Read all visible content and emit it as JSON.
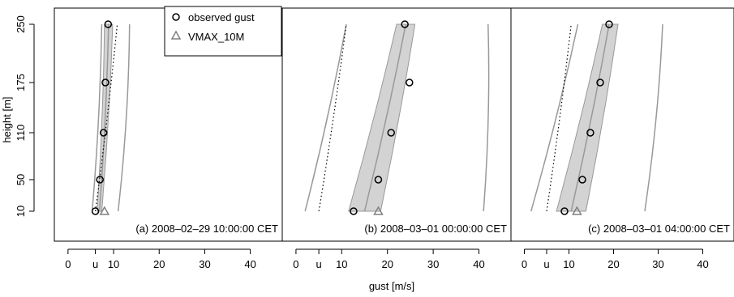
{
  "chart_data": {
    "type": "scatter",
    "xlabel": "gust [m/s]",
    "ylabel": "height [m]",
    "x_ticks": [
      "0",
      "u",
      "10",
      "20",
      "30",
      "40"
    ],
    "y_ticks": [
      "10",
      "50",
      "110",
      "175",
      "250"
    ],
    "xlim": [
      -3,
      47
    ],
    "legend": {
      "position": "top-left of second panel",
      "entries": [
        {
          "label": "observed gust",
          "marker": "circle",
          "color": "#000000"
        },
        {
          "label": "VMAX_10M",
          "marker": "triangle",
          "color": "#808080"
        }
      ]
    },
    "colors": {
      "band_fill": "#d3d3d3",
      "curves": "#999999",
      "triangle": "#808080"
    },
    "panels": [
      {
        "label": "(a) 2008–02–29 10:00:00 CET",
        "u": 6,
        "observed_gust": [
          {
            "height": 10,
            "gust": 6.0
          },
          {
            "height": 50,
            "gust": 7.0
          },
          {
            "height": 110,
            "gust": 7.8
          },
          {
            "height": 175,
            "gust": 8.2
          },
          {
            "height": 250,
            "gust": 8.8
          }
        ],
        "vmax_10m": {
          "height": 10,
          "gust": 8.0
        },
        "band_lower": [
          {
            "height": 10,
            "gust": 6.4
          },
          {
            "height": 250,
            "gust": 8.0
          }
        ],
        "band_upper": [
          {
            "height": 10,
            "gust": 7.4
          },
          {
            "height": 250,
            "gust": 9.8
          }
        ],
        "median": [
          {
            "height": 10,
            "gust": 6.9
          },
          {
            "height": 250,
            "gust": 8.9
          }
        ],
        "outer_lower": [
          {
            "height": 10,
            "gust": 5.3
          },
          {
            "height": 250,
            "gust": 7.4
          }
        ],
        "outer_upper": [
          {
            "height": 10,
            "gust": 11.0
          },
          {
            "height": 250,
            "gust": 13.5
          }
        ],
        "dotted": [
          {
            "height": 10,
            "gust": 6.0
          },
          {
            "height": 250,
            "gust": 10.8
          }
        ]
      },
      {
        "label": "(b) 2008–03–01 00:00:00 CET",
        "u": 5,
        "observed_gust": [
          {
            "height": 10,
            "gust": 12.6
          },
          {
            "height": 50,
            "gust": 18.0
          },
          {
            "height": 110,
            "gust": 20.8
          },
          {
            "height": 175,
            "gust": 24.8
          },
          {
            "height": 250,
            "gust": 23.8
          }
        ],
        "vmax_10m": {
          "height": 10,
          "gust": 18.0
        },
        "band_lower": [
          {
            "height": 10,
            "gust": 11.5
          },
          {
            "height": 250,
            "gust": 22.0
          }
        ],
        "band_upper": [
          {
            "height": 10,
            "gust": 18.5
          },
          {
            "height": 250,
            "gust": 26.0
          }
        ],
        "median": [
          {
            "height": 10,
            "gust": 15.0
          },
          {
            "height": 250,
            "gust": 24.0
          }
        ],
        "outer_lower": [
          {
            "height": 10,
            "gust": 2.0
          },
          {
            "height": 250,
            "gust": 11.0
          }
        ],
        "outer_upper": [
          {
            "height": 10,
            "gust": 41.0
          },
          {
            "height": 250,
            "gust": 42.0
          }
        ],
        "dotted": [
          {
            "height": 10,
            "gust": 5.0
          },
          {
            "height": 250,
            "gust": 11.0
          }
        ]
      },
      {
        "label": "(c) 2008–03–01 04:00:00 CET",
        "u": 5,
        "observed_gust": [
          {
            "height": 10,
            "gust": 9.0
          },
          {
            "height": 50,
            "gust": 13.0
          },
          {
            "height": 110,
            "gust": 14.8
          },
          {
            "height": 175,
            "gust": 17.0
          },
          {
            "height": 250,
            "gust": 19.0
          }
        ],
        "vmax_10m": {
          "height": 10,
          "gust": 11.8
        },
        "band_lower": [
          {
            "height": 10,
            "gust": 7.2
          },
          {
            "height": 250,
            "gust": 17.5
          }
        ],
        "band_upper": [
          {
            "height": 10,
            "gust": 13.8
          },
          {
            "height": 250,
            "gust": 21.0
          }
        ],
        "median": [
          {
            "height": 10,
            "gust": 10.5
          },
          {
            "height": 250,
            "gust": 19.0
          }
        ],
        "outer_lower": [
          {
            "height": 10,
            "gust": 1.5
          },
          {
            "height": 250,
            "gust": 12.0
          }
        ],
        "outer_upper": [
          {
            "height": 10,
            "gust": 27.0
          },
          {
            "height": 250,
            "gust": 31.0
          }
        ],
        "dotted": [
          {
            "height": 10,
            "gust": 5.0
          },
          {
            "height": 250,
            "gust": 10.5
          }
        ]
      }
    ]
  }
}
